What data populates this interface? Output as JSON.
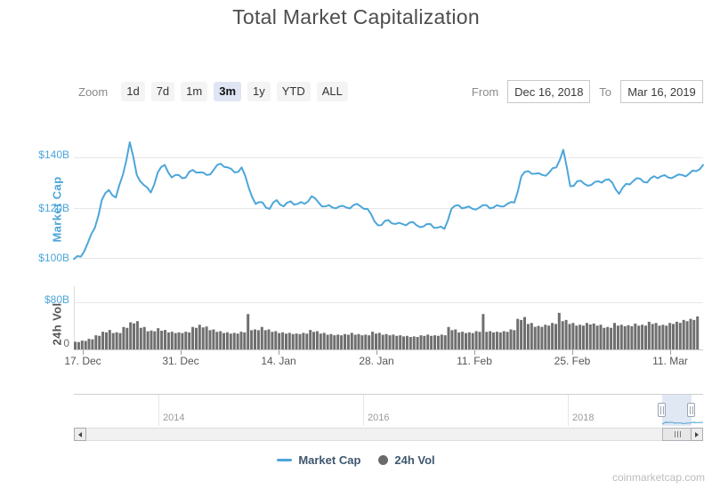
{
  "header": {
    "title": "Total Market Capitalization"
  },
  "toolbar": {
    "zoom_label": "Zoom",
    "buttons": [
      {
        "label": "1d",
        "selected": false
      },
      {
        "label": "7d",
        "selected": false
      },
      {
        "label": "1m",
        "selected": false
      },
      {
        "label": "3m",
        "selected": true
      },
      {
        "label": "1y",
        "selected": false
      },
      {
        "label": "YTD",
        "selected": false
      },
      {
        "label": "ALL",
        "selected": false
      }
    ],
    "from_label": "From",
    "from_value": "Dec 16, 2018",
    "to_label": "To",
    "to_value": "Mar 16, 2019"
  },
  "legend": [
    {
      "label": "Market Cap",
      "marker": "line-dash",
      "color": "#4DA6D9"
    },
    {
      "label": "24h Vol",
      "marker": "circle",
      "color": "#6A6A6A"
    }
  ],
  "watermark": "coinmarketcap.com",
  "chart_data": {
    "type": "line",
    "title": "Total Market Capitalization",
    "granularity": "daily",
    "x_range": [
      "Dec 16, 2018",
      "Mar 16, 2019"
    ],
    "x_tick_labels": [
      "17. Dec",
      "31. Dec",
      "14. Jan",
      "28. Jan",
      "11. Feb",
      "25. Feb",
      "11. Mar"
    ],
    "navigator_tick_labels": [
      "2014",
      "2016",
      "2018"
    ],
    "series": [
      {
        "name": "Market Cap",
        "type": "line",
        "color": "#4DA6D9",
        "unit": "USD billions",
        "axis_title": "Market Cap",
        "axis_ticks": [
          "$140B",
          "$120B",
          "$100B"
        ],
        "axis_range_b": [
          100,
          140
        ],
        "values_b": [
          99.5,
          100.5,
          106,
          112,
          123,
          127,
          124,
          133,
          146,
          133,
          129,
          126,
          134,
          137,
          132,
          133,
          132,
          135,
          134,
          133,
          135,
          137.5,
          136,
          134,
          136,
          128,
          121.5,
          122,
          119.5,
          123,
          120.5,
          122.5,
          121.5,
          121.5,
          124.5,
          122,
          120.5,
          120,
          120.5,
          120,
          121,
          120.5,
          119.5,
          114.5,
          113,
          115,
          113.5,
          113.5,
          114,
          113,
          112.5,
          113.5,
          112,
          111.5,
          119.5,
          121,
          120,
          119.5,
          120,
          121,
          120,
          120.5,
          121.5,
          122,
          132.5,
          134.5,
          133.5,
          133,
          134,
          136,
          143,
          128.5,
          130.5,
          129.5,
          129,
          130.5,
          131,
          130,
          125.5,
          129.5,
          130.5,
          131.5,
          130,
          132.5,
          132.5,
          132,
          132.5,
          133,
          133.5,
          134.5,
          137
        ]
      },
      {
        "name": "24h Vol",
        "type": "bar",
        "color": "#6F6F6F",
        "unit": "USD billions",
        "axis_title": "24h Vol",
        "axis_ticks": [
          "$80B",
          "0"
        ],
        "axis_range_b": [
          0,
          80
        ],
        "values_b": [
          13,
          15,
          18,
          24,
          30,
          33,
          29,
          38,
          46,
          48,
          38,
          32,
          36,
          33,
          30,
          29,
          30,
          38,
          42,
          39,
          34,
          31,
          29,
          28,
          30,
          60,
          34,
          38,
          34,
          31,
          29,
          28,
          27,
          28,
          33,
          31,
          28,
          26,
          25,
          26,
          28,
          26,
          25,
          30,
          28,
          26,
          25,
          24,
          23,
          22,
          24,
          25,
          24,
          25,
          38,
          34,
          30,
          29,
          31,
          60,
          31,
          30,
          31,
          34,
          52,
          55,
          45,
          40,
          42,
          45,
          62,
          50,
          45,
          42,
          45,
          44,
          42,
          38,
          45,
          42,
          41,
          44,
          42,
          47,
          45,
          42,
          45,
          47,
          50,
          52,
          56
        ]
      }
    ]
  }
}
